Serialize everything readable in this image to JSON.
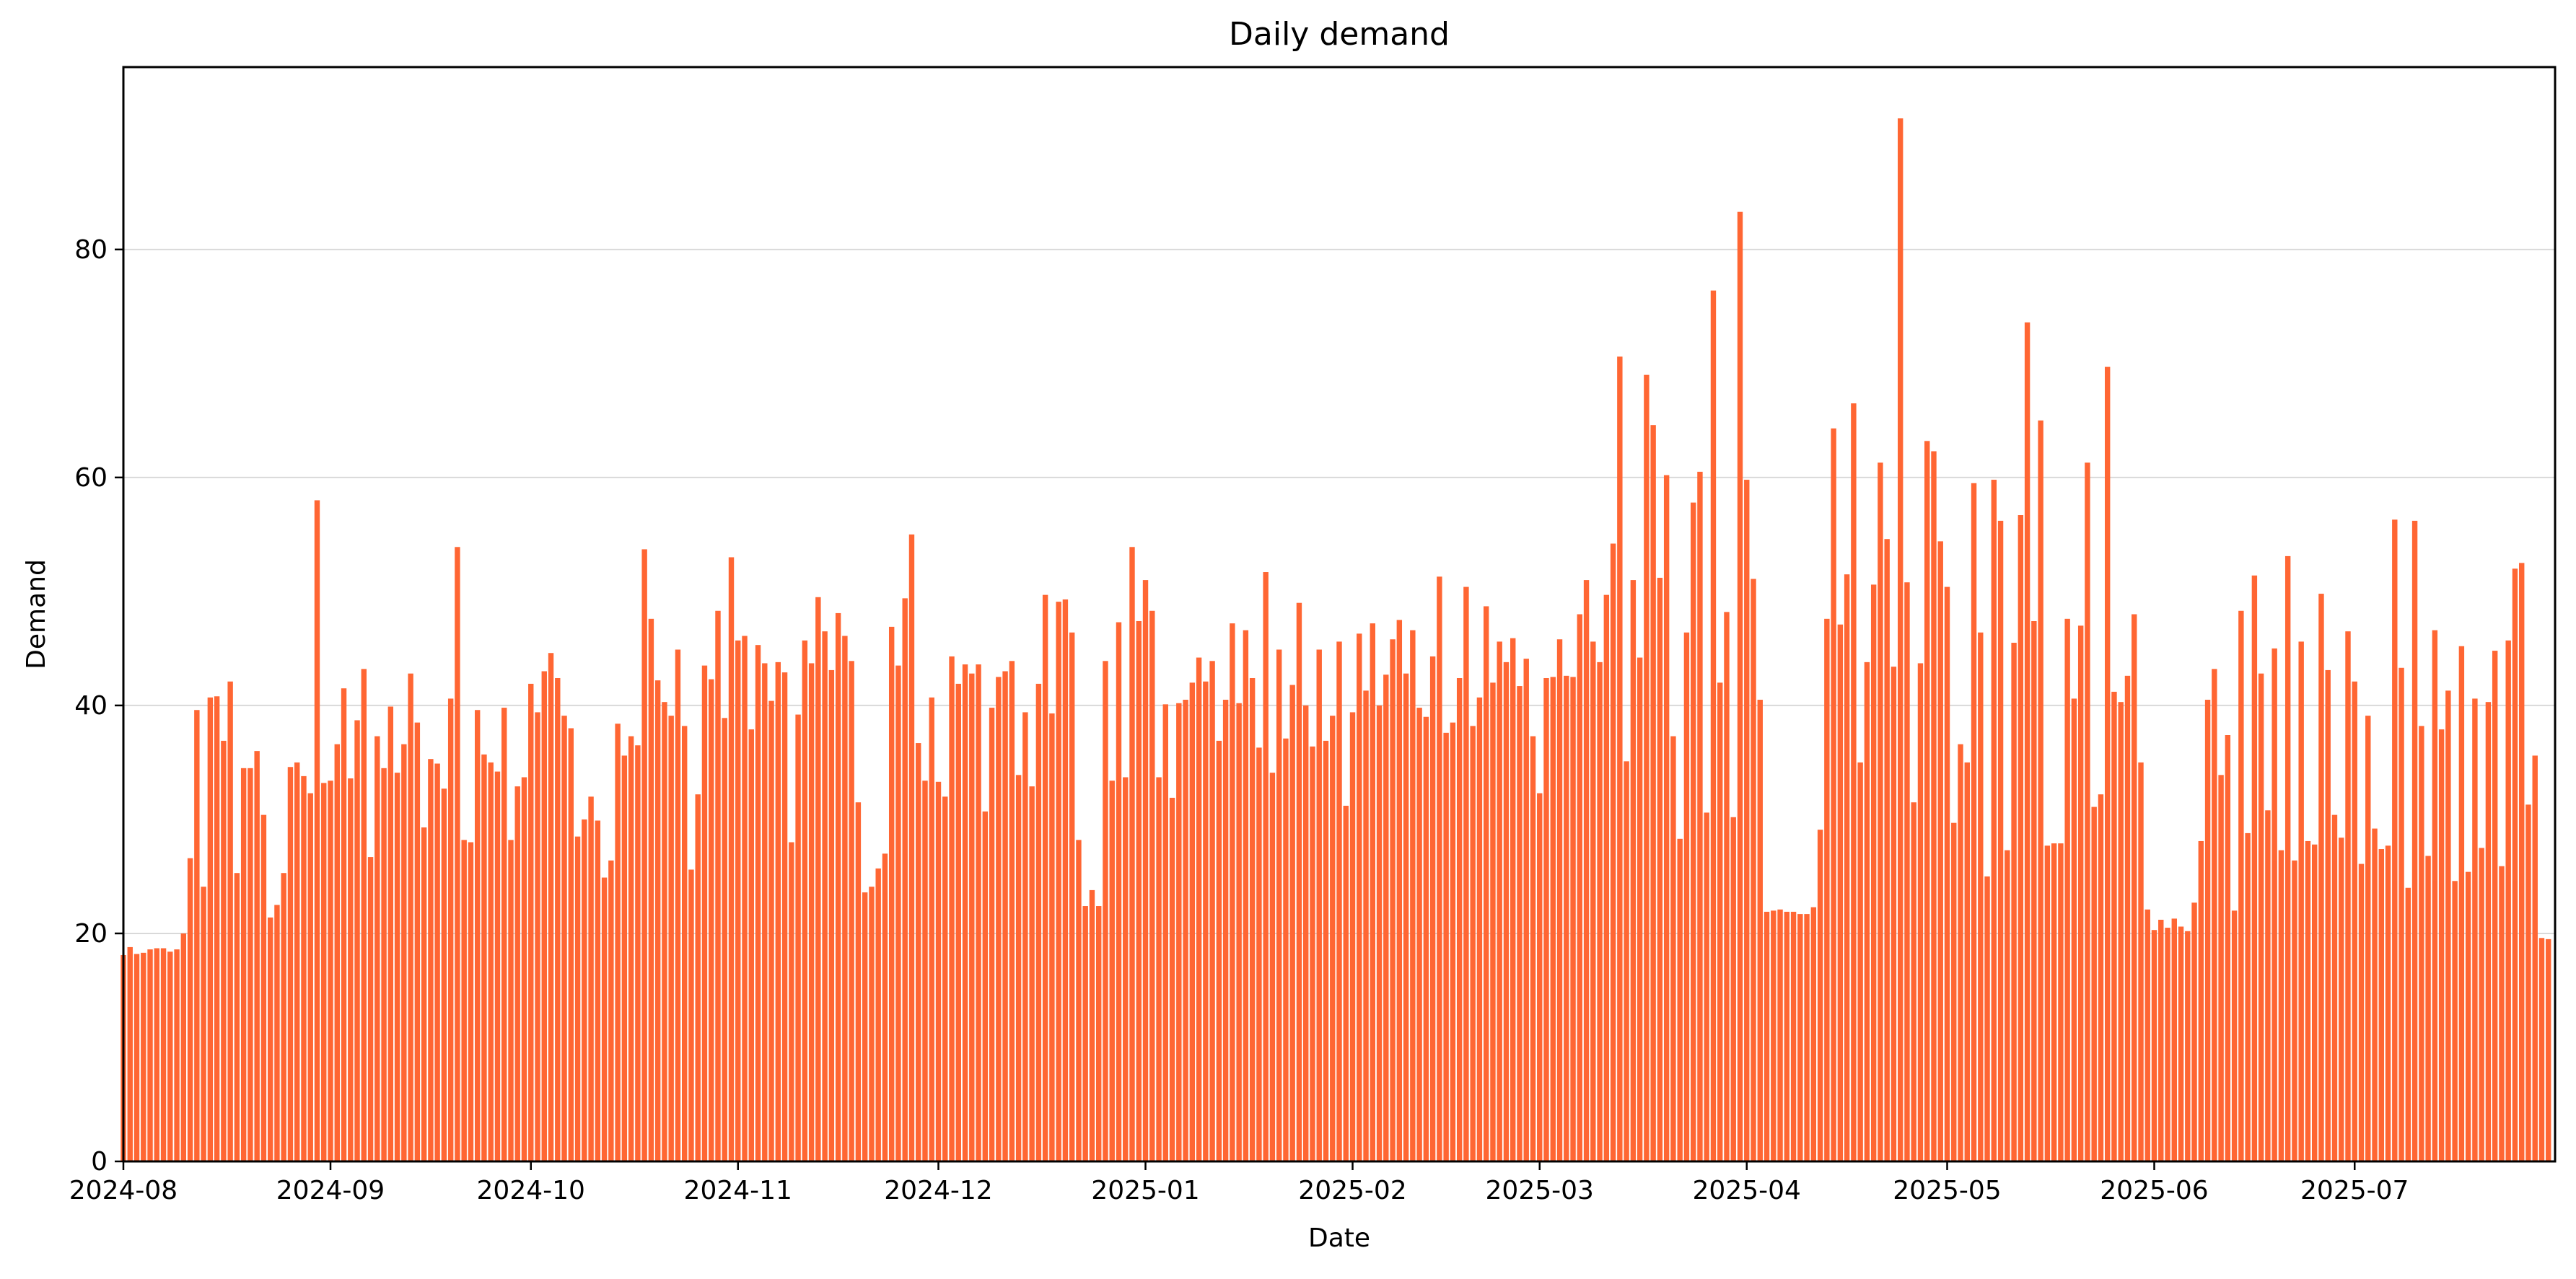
{
  "chart_data": {
    "type": "bar",
    "title": "Daily demand",
    "xlabel": "Date",
    "ylabel": "Demand",
    "x_start": "2024-08-01",
    "x_end": "2025-07-31",
    "xlim": [
      "2024-08-01",
      "2025-07-31"
    ],
    "ylim": [
      0,
      96
    ],
    "grid": "horizontal",
    "bar_color": "#ff6633",
    "y_ticks": [
      0,
      20,
      40,
      60,
      80
    ],
    "x_ticks": [
      {
        "date": "2024-08-01",
        "label": "2024-08"
      },
      {
        "date": "2024-09-01",
        "label": "2024-09"
      },
      {
        "date": "2024-10-01",
        "label": "2024-10"
      },
      {
        "date": "2024-11-01",
        "label": "2024-11"
      },
      {
        "date": "2024-12-01",
        "label": "2024-12"
      },
      {
        "date": "2025-01-01",
        "label": "2025-01"
      },
      {
        "date": "2025-02-01",
        "label": "2025-02"
      },
      {
        "date": "2025-03-01",
        "label": "2025-03"
      },
      {
        "date": "2025-04-01",
        "label": "2025-04"
      },
      {
        "date": "2025-05-01",
        "label": "2025-05"
      },
      {
        "date": "2025-06-01",
        "label": "2025-06"
      },
      {
        "date": "2025-07-01",
        "label": "2025-07"
      }
    ],
    "values": [
      18.1,
      18.8,
      18.2,
      18.3,
      18.6,
      18.7,
      18.7,
      18.4,
      18.6,
      20.0,
      26.6,
      39.6,
      24.1,
      40.7,
      40.8,
      36.9,
      42.1,
      25.3,
      34.5,
      34.5,
      36.0,
      30.4,
      21.4,
      22.5,
      25.3,
      34.6,
      35.0,
      33.8,
      32.3,
      58.0,
      33.2,
      33.4,
      36.6,
      41.5,
      33.6,
      38.7,
      43.2,
      26.7,
      37.3,
      34.5,
      39.9,
      34.1,
      36.6,
      42.8,
      38.5,
      29.3,
      35.3,
      34.9,
      32.7,
      40.6,
      53.9,
      28.2,
      28.0,
      39.6,
      35.7,
      35.0,
      34.2,
      39.8,
      28.2,
      32.9,
      33.7,
      41.9,
      39.4,
      43.0,
      44.6,
      42.4,
      39.1,
      38.0,
      28.5,
      30.0,
      32.0,
      29.9,
      24.9,
      26.4,
      38.4,
      35.6,
      37.3,
      36.5,
      53.7,
      47.6,
      42.2,
      40.3,
      39.1,
      44.9,
      38.2,
      25.6,
      32.2,
      43.5,
      42.3,
      48.3,
      38.9,
      53.0,
      45.7,
      46.1,
      37.9,
      45.3,
      43.7,
      40.4,
      43.8,
      42.9,
      28.0,
      39.2,
      45.7,
      43.7,
      49.5,
      46.5,
      43.1,
      48.1,
      46.1,
      43.9,
      31.5,
      23.6,
      24.1,
      25.7,
      27.0,
      46.9,
      43.5,
      49.4,
      55.0,
      36.7,
      33.4,
      40.7,
      33.3,
      32.0,
      44.3,
      41.9,
      43.6,
      42.8,
      43.6,
      30.7,
      39.8,
      42.5,
      43.0,
      43.9,
      33.9,
      39.4,
      32.9,
      41.9,
      49.7,
      39.3,
      49.1,
      49.3,
      46.4,
      28.2,
      22.4,
      23.8,
      22.4,
      43.9,
      33.4,
      47.3,
      33.7,
      53.9,
      47.4,
      51.0,
      48.3,
      33.7,
      40.1,
      31.9,
      40.2,
      40.5,
      42.0,
      44.2,
      42.1,
      43.9,
      36.9,
      40.5,
      47.2,
      40.2,
      46.6,
      42.4,
      36.3,
      51.7,
      34.1,
      44.9,
      37.1,
      41.8,
      49.0,
      40.0,
      36.4,
      44.9,
      36.9,
      39.1,
      45.6,
      31.2,
      39.4,
      46.3,
      41.3,
      47.2,
      40.0,
      42.7,
      45.8,
      47.5,
      42.8,
      46.6,
      39.8,
      39.0,
      44.3,
      51.3,
      37.6,
      38.5,
      42.4,
      50.4,
      38.2,
      40.7,
      48.7,
      42.0,
      45.6,
      43.8,
      45.9,
      41.7,
      44.1,
      37.3,
      32.3,
      42.4,
      42.5,
      45.8,
      42.6,
      42.5,
      48.0,
      51.0,
      45.6,
      43.8,
      49.7,
      54.2,
      70.6,
      35.1,
      51.0,
      44.2,
      69.0,
      64.6,
      51.2,
      60.2,
      37.3,
      28.3,
      46.4,
      57.8,
      60.5,
      30.6,
      76.4,
      42.0,
      48.2,
      30.2,
      83.3,
      59.8,
      51.1,
      40.5,
      21.9,
      22.0,
      22.1,
      21.9,
      21.9,
      21.7,
      21.7,
      22.3,
      29.1,
      47.6,
      64.3,
      47.1,
      51.5,
      66.5,
      35.0,
      43.8,
      50.6,
      61.3,
      54.6,
      43.4,
      91.5,
      50.8,
      31.5,
      43.7,
      63.2,
      62.3,
      54.4,
      50.4,
      29.7,
      36.6,
      35.0,
      59.5,
      46.4,
      25.0,
      59.8,
      56.2,
      27.3,
      45.5,
      56.7,
      73.6,
      47.4,
      65.0,
      27.7,
      27.9,
      27.9,
      47.6,
      40.6,
      47.0,
      61.3,
      31.1,
      32.2,
      69.7,
      41.2,
      40.3,
      42.6,
      48.0,
      35.0,
      22.1,
      20.3,
      21.2,
      20.5,
      21.3,
      20.6,
      20.2,
      22.7,
      28.1,
      40.5,
      43.2,
      33.9,
      37.4,
      22.0,
      48.3,
      28.8,
      51.4,
      42.8,
      30.8,
      45.0,
      27.3,
      53.1,
      26.4,
      45.6,
      28.1,
      27.8,
      49.8,
      43.1,
      30.4,
      28.4,
      46.5,
      42.1,
      26.1,
      39.1,
      29.2,
      27.4,
      27.7,
      56.3,
      43.3,
      24.0,
      56.2,
      38.2,
      26.8,
      46.6,
      37.9,
      41.3,
      24.6,
      45.2,
      25.4,
      40.6,
      27.5,
      40.3,
      44.8,
      25.9,
      45.7,
      52.0,
      52.5,
      31.3,
      35.6,
      19.6,
      19.5
    ]
  }
}
